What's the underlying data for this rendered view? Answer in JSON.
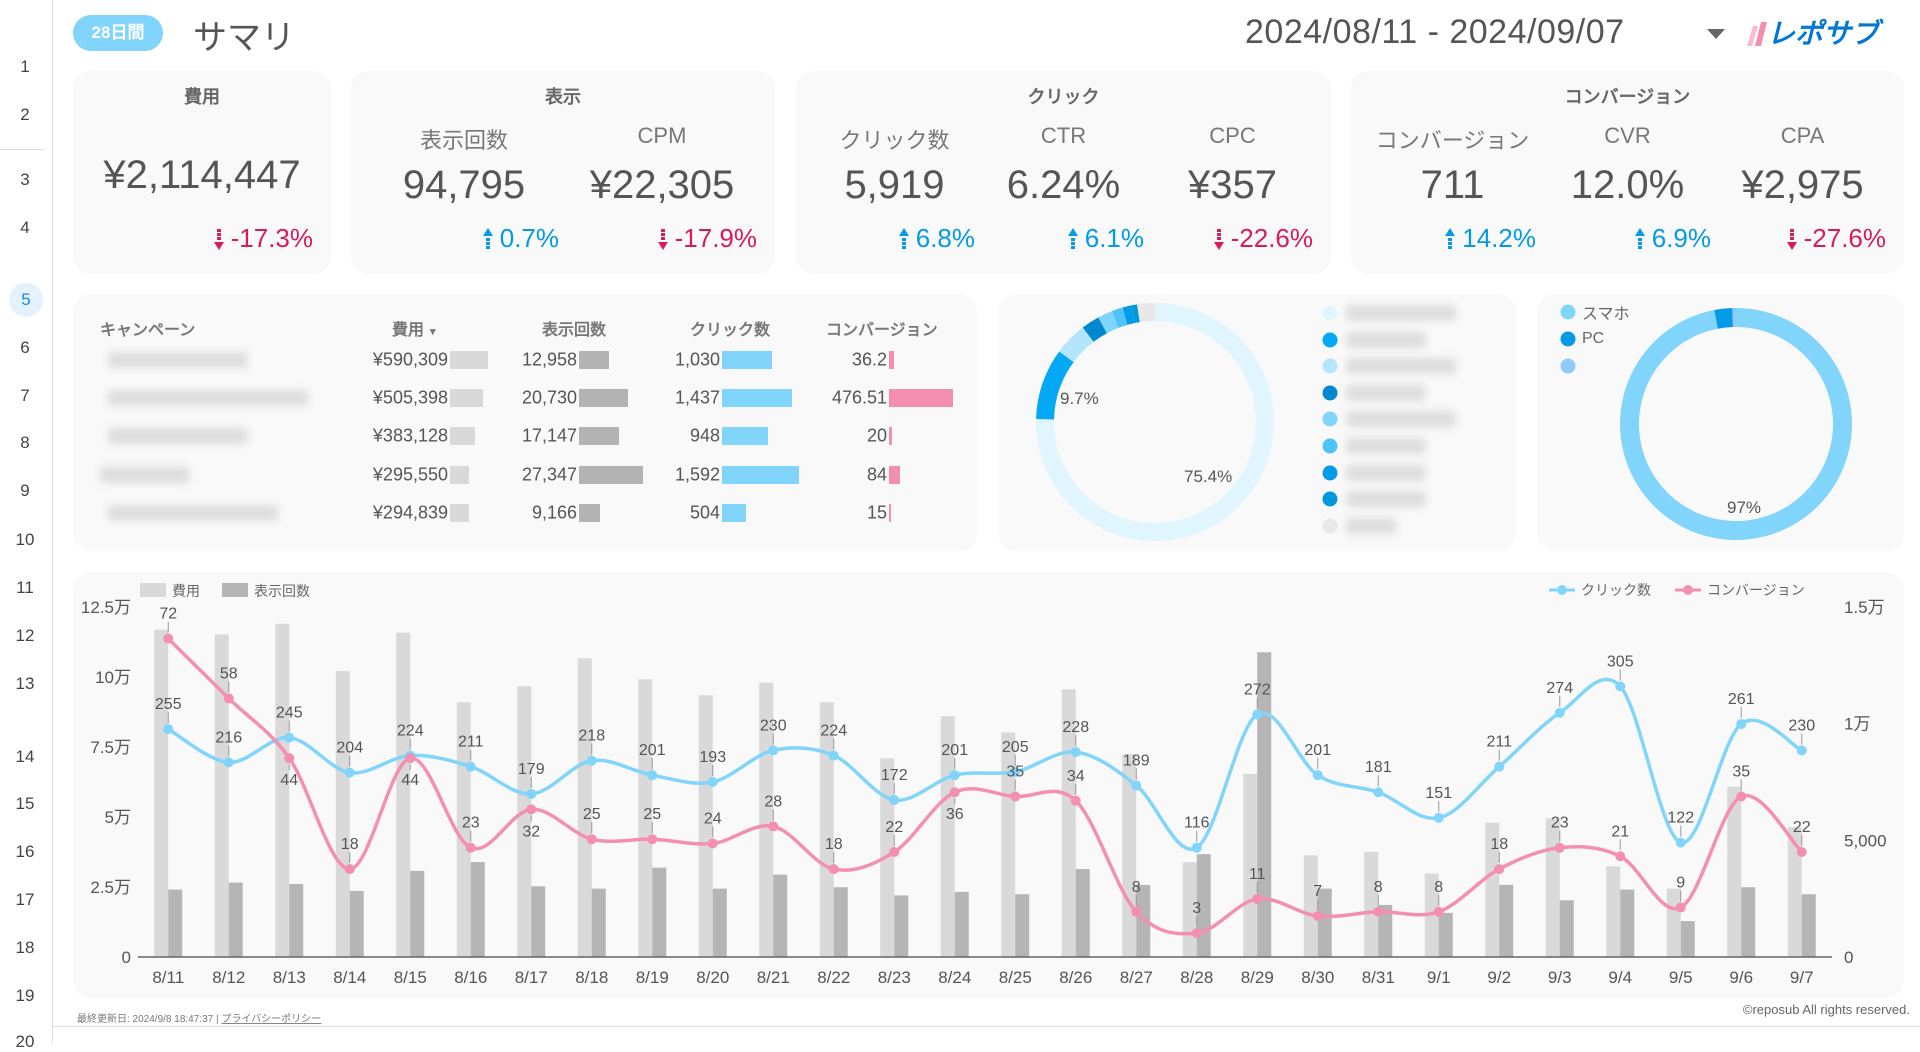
{
  "sidebar": {
    "rows": [
      "1",
      "2",
      "3",
      "4",
      "5",
      "6",
      "7",
      "8",
      "9",
      "10",
      "11",
      "12",
      "13",
      "14",
      "15",
      "16",
      "17",
      "18",
      "19",
      "20"
    ],
    "active_row": "5"
  },
  "header": {
    "period_badge": "28日間",
    "title": "サマリ",
    "date_range": "2024/08/11 - 2024/09/07",
    "logo_text": "レポサブ"
  },
  "kpis": [
    {
      "group": "費用",
      "metrics": [
        {
          "label": "",
          "value": "¥2,114,447",
          "change": "-17.3%",
          "direction": "down"
        }
      ]
    },
    {
      "group": "表示",
      "metrics": [
        {
          "label": "表示回数",
          "value": "94,795",
          "change": "0.7%",
          "direction": "up"
        },
        {
          "label": "CPM",
          "value": "¥22,305",
          "change": "-17.9%",
          "direction": "down"
        }
      ]
    },
    {
      "group": "クリック",
      "metrics": [
        {
          "label": "クリック数",
          "value": "5,919",
          "change": "6.8%",
          "direction": "up"
        },
        {
          "label": "CTR",
          "value": "6.24%",
          "change": "6.1%",
          "direction": "up"
        },
        {
          "label": "CPC",
          "value": "¥357",
          "change": "-22.6%",
          "direction": "down"
        }
      ]
    },
    {
      "group": "コンバージョン",
      "metrics": [
        {
          "label": "コンバージョン",
          "value": "711",
          "change": "14.2%",
          "direction": "up"
        },
        {
          "label": "CVR",
          "value": "12.0%",
          "change": "6.9%",
          "direction": "up"
        },
        {
          "label": "CPA",
          "value": "¥2,975",
          "change": "-27.6%",
          "direction": "down"
        }
      ]
    }
  ],
  "campaign_table": {
    "headers": {
      "campaign": "キャンペーン",
      "cost": "費用",
      "impressions": "表示回数",
      "clicks": "クリック数",
      "conversions": "コンバージョン"
    },
    "sort_indicator": "▾",
    "rows": [
      {
        "cost": "¥590,309",
        "impressions": "12,958",
        "clicks": "1,030",
        "conversions": "36.2",
        "v": [
          590309,
          12958,
          1030,
          36.2
        ]
      },
      {
        "cost": "¥505,398",
        "impressions": "20,730",
        "clicks": "1,437",
        "conversions": "476.51",
        "v": [
          505398,
          20730,
          1437,
          476.51
        ]
      },
      {
        "cost": "¥383,128",
        "impressions": "17,147",
        "clicks": "948",
        "conversions": "20",
        "v": [
          383128,
          17147,
          948,
          20
        ]
      },
      {
        "cost": "¥295,550",
        "impressions": "27,347",
        "clicks": "1,592",
        "conversions": "84",
        "v": [
          295550,
          27347,
          1592,
          84
        ]
      },
      {
        "cost": "¥294,839",
        "impressions": "9,166",
        "clicks": "504",
        "conversions": "15",
        "v": [
          294839,
          9166,
          504,
          15
        ]
      }
    ],
    "bar_colors": [
      "#d9d9d9",
      "#b3b3b3",
      "#81d4fa",
      "#f48fb1"
    ]
  },
  "campaign_donut": {
    "type": "pie",
    "slices": [
      {
        "value": 75.4,
        "color": "#e1f5fe",
        "label": "75.4%"
      },
      {
        "value": 9.7,
        "color": "#03a9f4",
        "label": "9.7%"
      },
      {
        "value": 4.5,
        "color": "#b3e5fc"
      },
      {
        "value": 2.5,
        "color": "#0288d1"
      },
      {
        "value": 2.0,
        "color": "#81d4fa"
      },
      {
        "value": 1.5,
        "color": "#4fc3f7"
      },
      {
        "value": 1.2,
        "color": "#039be5"
      },
      {
        "value": 0.8,
        "color": "#0398dc"
      },
      {
        "value": 2.4,
        "color": "#e8e8e8"
      }
    ]
  },
  "device_donut": {
    "type": "pie",
    "slices": [
      {
        "name": "スマホ",
        "value": 97,
        "color": "#81d4fa",
        "label": "97%"
      },
      {
        "name": "PC",
        "value": 2.5,
        "color": "#039be5"
      },
      {
        "name": "",
        "value": 0.5,
        "color": "#90caf9"
      }
    ]
  },
  "chart_data": {
    "type": "bar+line",
    "categories": [
      "8/11",
      "8/12",
      "8/13",
      "8/14",
      "8/15",
      "8/16",
      "8/17",
      "8/18",
      "8/19",
      "8/20",
      "8/21",
      "8/22",
      "8/23",
      "8/24",
      "8/25",
      "8/26",
      "8/27",
      "8/28",
      "8/29",
      "8/30",
      "8/31",
      "9/1",
      "9/2",
      "9/3",
      "9/4",
      "9/5",
      "9/6",
      "9/7"
    ],
    "left_axis": {
      "ticks": [
        "0",
        "2.5万",
        "5万",
        "7.5万",
        "10万",
        "12.5万"
      ],
      "range": [
        0,
        125000
      ]
    },
    "right_axis": {
      "ticks": [
        "0",
        "5,000",
        "1万",
        "1.5万"
      ],
      "range": [
        0,
        15000
      ]
    },
    "series": [
      {
        "name": "費用",
        "kind": "bar",
        "axis": "left",
        "color": "#d9d9d9",
        "values": [
          116900,
          115200,
          119000,
          102100,
          115800,
          91000,
          96700,
          106700,
          99200,
          93500,
          98000,
          91000,
          71000,
          86000,
          80200,
          95600,
          72400,
          33900,
          65400,
          36300,
          37600,
          29800,
          48000,
          49500,
          32400,
          24400,
          60800,
          46400
        ]
      },
      {
        "name": "表示回数",
        "kind": "bar",
        "axis": "right",
        "color": "#b5b5b5",
        "values": [
          2890,
          3190,
          3130,
          2830,
          3690,
          4070,
          3030,
          2930,
          3830,
          2930,
          3530,
          2990,
          2640,
          2790,
          2690,
          3770,
          3090,
          4410,
          13060,
          2930,
          2230,
          1890,
          3090,
          2430,
          2890,
          1540,
          2990,
          2690
        ]
      },
      {
        "name": "クリック数",
        "kind": "line",
        "color": "#81d4fa",
        "values": [
          255,
          216,
          245,
          204,
          224,
          211,
          179,
          218,
          201,
          193,
          230,
          224,
          172,
          201,
          205,
          228,
          189,
          116,
          272,
          201,
          181,
          151,
          211,
          274,
          305,
          122,
          261,
          230
        ]
      },
      {
        "name": "コンバージョン",
        "kind": "line",
        "color": "#f48fb1",
        "values": [
          72,
          58,
          44,
          18,
          44,
          23,
          32,
          25,
          25,
          24,
          28,
          18,
          22,
          36,
          35,
          34,
          8,
          3,
          11,
          7,
          8,
          8,
          18,
          23,
          21,
          9,
          35,
          22
        ]
      }
    ],
    "grid": false,
    "legend": "top-left (bars), top-right (lines)"
  },
  "footer": {
    "last_updated": "最終更新日: 2024/9/8 18:47:37",
    "separator": "|",
    "privacy_link": "プライバシーポリシー",
    "copyright": "©reposub All rights reserved."
  }
}
